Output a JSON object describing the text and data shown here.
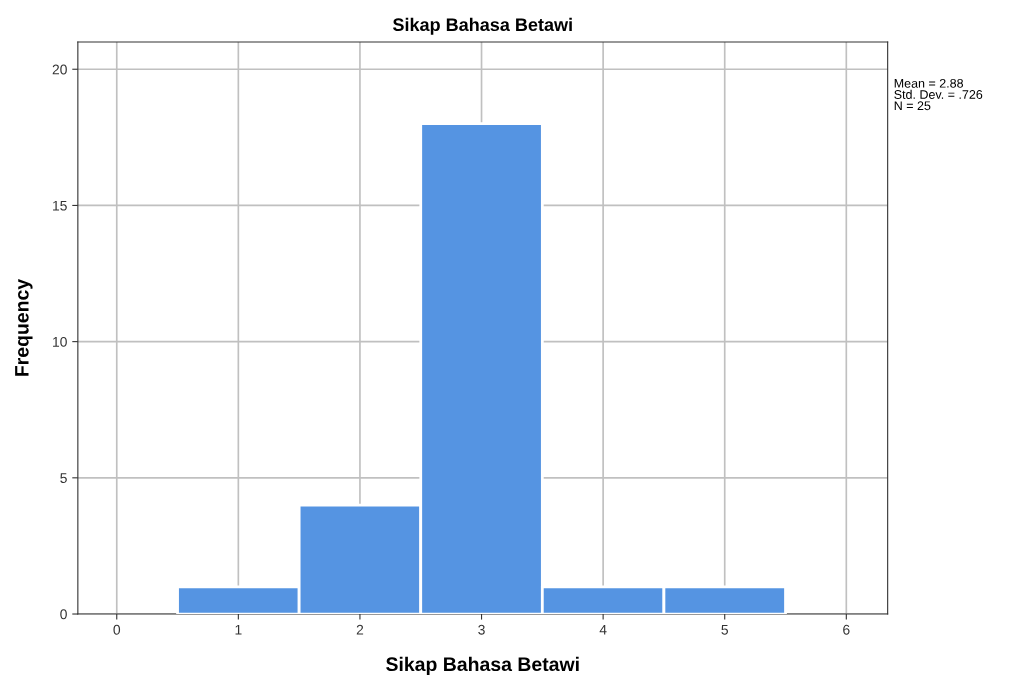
{
  "chart_data": {
    "type": "histogram",
    "title": "Sikap Bahasa Betawi",
    "xlabel": "Sikap Bahasa Betawi",
    "ylabel": "Frequency",
    "bins": [
      0.5,
      1.5,
      2.5,
      3.5,
      4.5,
      5.5
    ],
    "values": [
      1,
      4,
      18,
      1,
      1
    ],
    "color": "#5594e2",
    "xlim": [
      -0.32,
      6.34
    ],
    "xticks": [
      0,
      1,
      2,
      3,
      4,
      5,
      6
    ],
    "ylim": [
      0,
      21
    ],
    "yticks": [
      0,
      5,
      10,
      15,
      20
    ],
    "grid": true,
    "annotations": [
      "Mean = 2.88\nStd. Dev. = .726\nN = 25"
    ]
  }
}
